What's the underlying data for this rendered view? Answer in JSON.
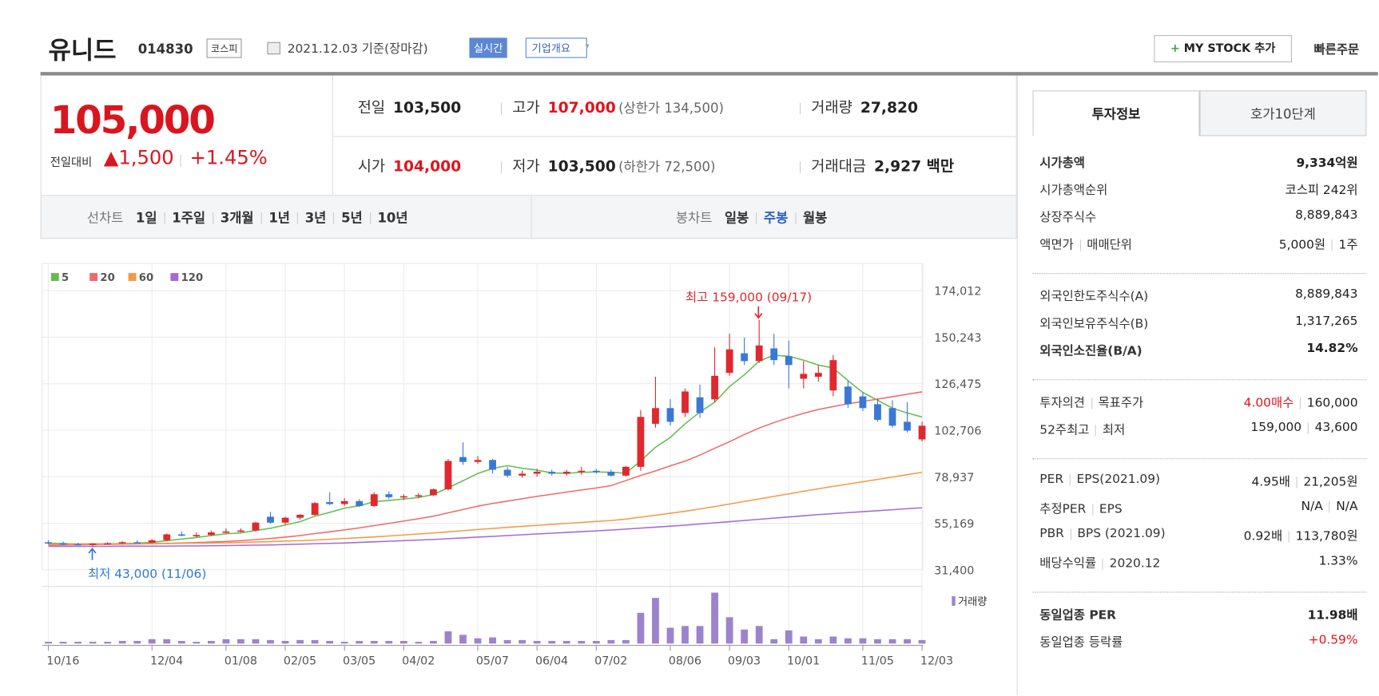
{
  "header": {
    "name": "유니드",
    "code": "014830",
    "market": "코스피",
    "date": "2021.12.03 기준(장마감)",
    "realtime": "실시간",
    "company_info": "기업개요",
    "my_stock": "MY STOCK 추가",
    "quick_order": "빠른주문"
  },
  "quote": {
    "price": "105,000",
    "change_label": "전일대비",
    "change": "▲1,500",
    "change_pct": "+1.45%",
    "rows": [
      [
        {
          "label": "전일",
          "value": "103,500"
        },
        {
          "label": "고가",
          "value": "107,000",
          "extra": "(상한가 134,500)",
          "color": "#e0141e"
        },
        {
          "label": "거래량",
          "value": "27,820"
        }
      ],
      [
        {
          "label": "시가",
          "value": "104,000",
          "color": "#e0141e"
        },
        {
          "label": "저가",
          "value": "103,500",
          "extra": "(하한가 72,500)"
        },
        {
          "label": "거래대금",
          "value": "2,927 백만"
        }
      ]
    ]
  },
  "tabs": {
    "line": {
      "label": "선차트",
      "options": [
        "1일",
        "1주일",
        "3개월",
        "1년",
        "3년",
        "5년",
        "10년"
      ]
    },
    "candle": {
      "label": "봉차트",
      "options": [
        "일봉",
        "주봉",
        "월봉"
      ],
      "selected": 1
    }
  },
  "chart_data": {
    "type": "candlestick",
    "categories": [
      "10/16",
      null,
      null,
      null,
      null,
      null,
      null,
      "12/04",
      null,
      null,
      null,
      null,
      "01/08",
      null,
      null,
      null,
      "02/05",
      null,
      null,
      null,
      "03/05",
      null,
      null,
      null,
      "04/02",
      null,
      null,
      null,
      null,
      "05/07",
      null,
      null,
      null,
      "06/04",
      null,
      null,
      null,
      "07/02",
      null,
      null,
      null,
      null,
      "08/06",
      null,
      null,
      null,
      "09/03",
      null,
      null,
      null,
      "10/01",
      null,
      null,
      null,
      null,
      "11/05",
      null,
      null,
      null,
      "12/03"
    ],
    "open": [
      45500,
      45000,
      44600,
      44300,
      44800,
      45000,
      45500,
      45200,
      46500,
      49500,
      49000,
      49200,
      50500,
      51000,
      51500,
      58500,
      55500,
      58000,
      59500,
      66000,
      65000,
      66500,
      64000,
      70000,
      68500,
      69000,
      69500,
      72500,
      89000,
      86500,
      87500,
      82500,
      79500,
      80500,
      81500,
      80500,
      81500,
      82000,
      81500,
      79500,
      84000,
      106000,
      114000,
      111500,
      119500,
      118500,
      132000,
      142000,
      138000,
      144500,
      140500,
      129000,
      130000,
      123000,
      125000,
      120000,
      116000,
      114000,
      107000,
      98000
    ],
    "high": [
      46500,
      45800,
      45200,
      45000,
      45500,
      46000,
      46500,
      47000,
      50000,
      51000,
      50500,
      51500,
      52500,
      52500,
      56000,
      61000,
      58500,
      60000,
      66000,
      71000,
      68000,
      67500,
      71000,
      71500,
      70000,
      70500,
      73000,
      88000,
      96500,
      89500,
      88000,
      84000,
      82000,
      83000,
      82500,
      82500,
      84000,
      83000,
      82500,
      84500,
      113000,
      130000,
      118500,
      124000,
      126000,
      145000,
      152000,
      150000,
      159000,
      152000,
      148500,
      138000,
      136000,
      141000,
      128000,
      122000,
      119000,
      118000,
      117000,
      107000
    ],
    "low": [
      44500,
      44000,
      43800,
      43000,
      44200,
      44500,
      45000,
      45000,
      46000,
      48500,
      48000,
      48800,
      50000,
      50500,
      51000,
      55000,
      54500,
      57000,
      59000,
      64500,
      64000,
      63500,
      63500,
      67500,
      67000,
      68000,
      69000,
      72000,
      85000,
      85500,
      80500,
      78500,
      78500,
      79000,
      79500,
      79500,
      80000,
      80500,
      79000,
      79000,
      82000,
      104000,
      105000,
      109500,
      109000,
      117000,
      130500,
      136000,
      137000,
      136000,
      124000,
      124000,
      127500,
      120000,
      114000,
      112500,
      107000,
      104000,
      101500,
      97000
    ],
    "close": [
      45000,
      44600,
      44300,
      44800,
      45000,
      45500,
      45200,
      46500,
      49500,
      49000,
      49200,
      50500,
      51000,
      51500,
      55500,
      55500,
      58000,
      59500,
      65500,
      65000,
      66500,
      64000,
      70000,
      68500,
      69000,
      69500,
      72500,
      87000,
      86500,
      87500,
      82500,
      79500,
      80500,
      81500,
      80500,
      81500,
      82000,
      81500,
      79500,
      84000,
      109500,
      114000,
      107000,
      122500,
      111500,
      130500,
      144000,
      138000,
      146000,
      138500,
      136000,
      131500,
      132000,
      138500,
      116000,
      114000,
      108000,
      105000,
      102500,
      105000
    ],
    "up_color": "#e0282e",
    "down_color": "#3a78d6",
    "series": [
      {
        "name": "5",
        "color": "#62bd4f",
        "values": [
          45000,
          44800,
          44600,
          44700,
          44700,
          44800,
          45000,
          45400,
          46300,
          47100,
          47900,
          48900,
          49800,
          50200,
          51500,
          52600,
          54300,
          56000,
          58800,
          60700,
          62900,
          64100,
          66200,
          66800,
          67600,
          68300,
          69900,
          73300,
          76900,
          80600,
          83200,
          84600,
          83300,
          82300,
          80900,
          80700,
          81200,
          81400,
          81200,
          80800,
          87000,
          94000,
          99000,
          106000,
          112000,
          117000,
          125000,
          131000,
          138000,
          141000,
          140500,
          138500,
          136000,
          134500,
          128000,
          122000,
          118000,
          114000,
          111500,
          109500
        ]
      },
      {
        "name": "20",
        "color": "#f06a6a",
        "values": [
          44000,
          44100,
          44200,
          44300,
          44400,
          44500,
          44600,
          44700,
          44900,
          45100,
          45300,
          45600,
          45900,
          46300,
          46800,
          47400,
          48100,
          48900,
          49900,
          50800,
          51800,
          52800,
          54000,
          55100,
          56300,
          57500,
          58800,
          60500,
          62200,
          63900,
          65300,
          66500,
          67700,
          68900,
          70000,
          71100,
          72200,
          73200,
          74400,
          77000,
          79600,
          81900,
          84500,
          86900,
          90000,
          93500,
          96800,
          100500,
          103800,
          106600,
          109100,
          111300,
          113300,
          114800,
          116200,
          117400,
          118600,
          119800,
          121100,
          122300
        ]
      },
      {
        "name": "60",
        "color": "#f59a44",
        "values": [
          44500,
          44500,
          44500,
          44600,
          44600,
          44700,
          44700,
          44800,
          44800,
          44900,
          45000,
          45100,
          45200,
          45400,
          45600,
          45800,
          46100,
          46300,
          46600,
          47000,
          47400,
          47800,
          48200,
          48700,
          49200,
          49700,
          50200,
          50800,
          51400,
          52000,
          52500,
          53100,
          53600,
          54100,
          54600,
          55100,
          55600,
          56100,
          56600,
          57300,
          58300,
          59300,
          60300,
          61300,
          62500,
          63700,
          65000,
          66300,
          67600,
          68900,
          70200,
          71500,
          72800,
          74000,
          75200,
          76400,
          77600,
          78800,
          80000,
          81200
        ]
      },
      {
        "name": "120",
        "color": "#a66ad6",
        "values": [
          43400,
          43400,
          43400,
          43400,
          43400,
          43500,
          43500,
          43500,
          43500,
          43600,
          43600,
          43700,
          43800,
          43900,
          44000,
          44100,
          44300,
          44500,
          44700,
          44900,
          45100,
          45400,
          45700,
          46000,
          46300,
          46600,
          46900,
          47300,
          47700,
          48100,
          48500,
          48900,
          49300,
          49700,
          50100,
          50500,
          50900,
          51300,
          51700,
          52200,
          52700,
          53200,
          53700,
          54200,
          54800,
          55400,
          56000,
          56600,
          57200,
          57800,
          58400,
          59000,
          59600,
          60100,
          60600,
          61100,
          61600,
          62100,
          62600,
          63100
        ]
      }
    ],
    "volume": {
      "name": "거래량",
      "color": "#9c84cc",
      "ylim": [
        0,
        3200000
      ],
      "values": [
        100000,
        100000,
        100000,
        100000,
        100000,
        150000,
        150000,
        250000,
        250000,
        150000,
        100000,
        150000,
        250000,
        250000,
        250000,
        200000,
        150000,
        200000,
        200000,
        150000,
        100000,
        150000,
        150000,
        150000,
        150000,
        100000,
        150000,
        700000,
        500000,
        300000,
        350000,
        200000,
        200000,
        150000,
        150000,
        150000,
        150000,
        150000,
        200000,
        200000,
        1750000,
        2600000,
        900000,
        1000000,
        1000000,
        2900000,
        1500000,
        800000,
        1000000,
        250000,
        750000,
        400000,
        250000,
        400000,
        300000,
        300000,
        250000,
        250000,
        250000,
        200000
      ]
    },
    "ylim": [
      31400,
      174012
    ],
    "yticks": [
      {
        "value": 31400,
        "label": "31,400"
      },
      {
        "value": 55169,
        "label": "55,169"
      },
      {
        "value": 78937,
        "label": "78,937"
      },
      {
        "value": 102706,
        "label": "102,706"
      },
      {
        "value": 126475,
        "label": "126,475"
      },
      {
        "value": 150243,
        "label": "150,243"
      },
      {
        "value": 174012,
        "label": "174,012"
      }
    ],
    "grid": true,
    "annotations": [
      {
        "text": "최고 159,000 (09/17)",
        "color": "#e0282e"
      },
      {
        "text": "최저 43,000 (11/06)",
        "color": "#2d7bd8"
      }
    ]
  },
  "info": {
    "tabs": [
      "투자정보",
      "호가10단계"
    ],
    "groups": [
      [
        {
          "label": [
            "시가총액"
          ],
          "value": [
            "9,334억원"
          ],
          "bold": true
        },
        {
          "label": [
            "시가총액순위"
          ],
          "value": [
            "코스피 242위"
          ]
        },
        {
          "label": [
            "상장주식수"
          ],
          "value": [
            "8,889,843"
          ]
        },
        {
          "label": [
            "액면가",
            "매매단위"
          ],
          "value": [
            "5,000원",
            "1주"
          ]
        }
      ],
      [
        {
          "label": [
            "외국인한도주식수(A)"
          ],
          "value": [
            "8,889,843"
          ]
        },
        {
          "label": [
            "외국인보유주식수(B)"
          ],
          "value": [
            "1,317,265"
          ]
        },
        {
          "label": [
            "외국인소진율(B/A)"
          ],
          "value": [
            "14.82%"
          ],
          "bold": true
        }
      ],
      [
        {
          "label": [
            "투자의견",
            "목표주가"
          ],
          "value": [
            "4.00매수",
            "160,000"
          ],
          "color": "#e0141e"
        },
        {
          "label": [
            "52주최고",
            "최저"
          ],
          "value": [
            "159,000",
            "43,600"
          ]
        }
      ],
      [
        {
          "label": [
            "PER",
            "EPS(2021.09)"
          ],
          "value": [
            "4.95배",
            "21,205원"
          ]
        },
        {
          "label": [
            "추정PER",
            "EPS"
          ],
          "value": [
            "N/A",
            "N/A"
          ]
        },
        {
          "label": [
            "PBR",
            "BPS (2021.09)"
          ],
          "value": [
            "0.92배",
            "113,780원"
          ]
        },
        {
          "label": [
            "배당수익률",
            "2020.12"
          ],
          "value": [
            "1.33%"
          ]
        }
      ],
      [
        {
          "label": [
            "동일업종 PER"
          ],
          "value": [
            "11.98배"
          ],
          "bold": true
        },
        {
          "label": [
            "동일업종 등락률"
          ],
          "value": [
            "+0.59%"
          ],
          "color": "#e0141e"
        }
      ]
    ]
  }
}
